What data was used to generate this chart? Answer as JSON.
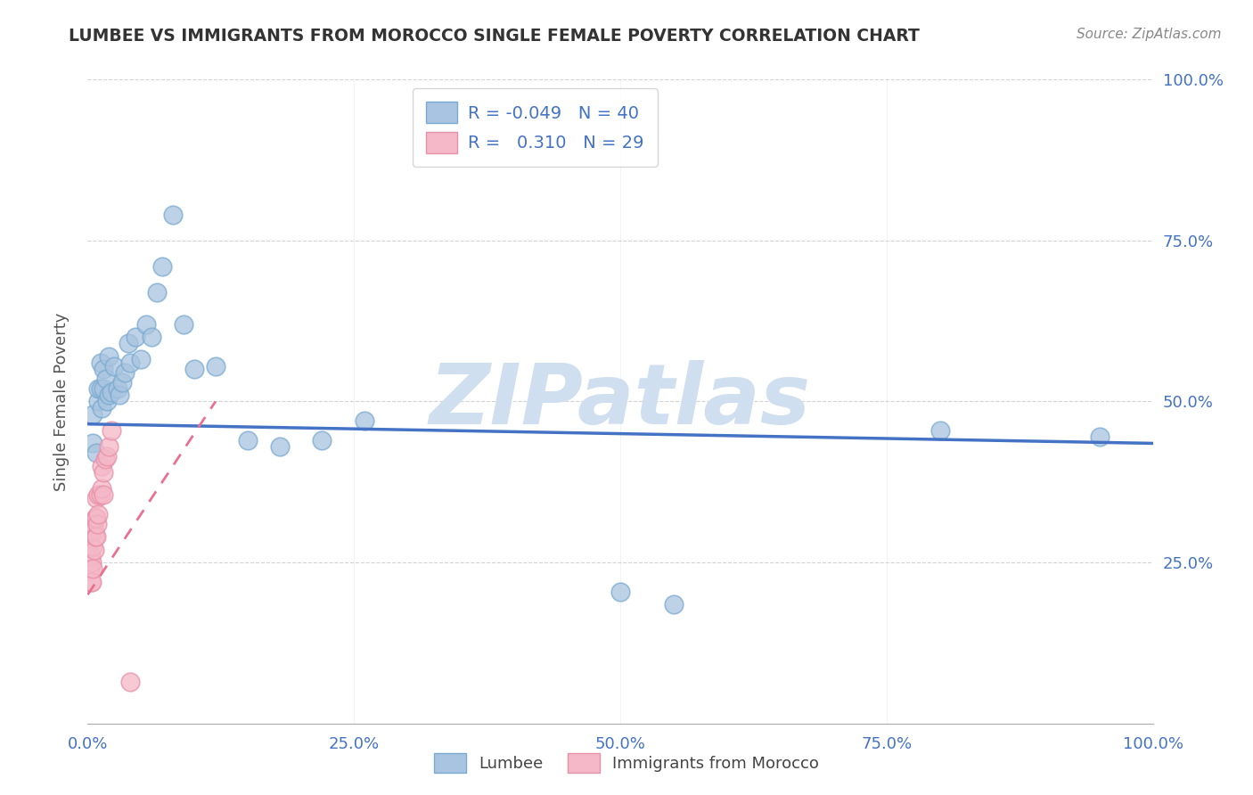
{
  "title": "LUMBEE VS IMMIGRANTS FROM MOROCCO SINGLE FEMALE POVERTY CORRELATION CHART",
  "source": "Source: ZipAtlas.com",
  "ylabel": "Single Female Poverty",
  "xlim": [
    0,
    1.0
  ],
  "ylim": [
    0,
    1.0
  ],
  "xtick_labels": [
    "0.0%",
    "",
    "",
    "",
    "25.0%",
    "",
    "",
    "",
    "50.0%",
    "",
    "",
    "",
    "75.0%",
    "",
    "",
    "",
    "100.0%"
  ],
  "xtick_vals": [
    0,
    0.25,
    0.5,
    0.75,
    1.0
  ],
  "ytick_labels_right": [
    "100.0%",
    "75.0%",
    "50.0%",
    "25.0%"
  ],
  "ytick_vals": [
    1.0,
    0.75,
    0.5,
    0.25
  ],
  "lumbee_R": "-0.049",
  "lumbee_N": "40",
  "morocco_R": "0.310",
  "morocco_N": "29",
  "lumbee_color": "#a8c4e0",
  "morocco_color": "#f4b8c8",
  "trendline_lumbee_color": "#4472c4",
  "trendline_morocco_color": "#e87090",
  "lumbee_dot_edge": "#7aaad0",
  "morocco_dot_edge": "#e890a8",
  "watermark_color": "#d0dff0",
  "lumbee_trend_x": [
    0.0,
    1.0
  ],
  "lumbee_trend_y": [
    0.465,
    0.435
  ],
  "morocco_trend_x": [
    0.0,
    0.12
  ],
  "morocco_trend_y": [
    0.2,
    0.5
  ],
  "lumbee_x": [
    0.005,
    0.005,
    0.008,
    0.01,
    0.01,
    0.012,
    0.012,
    0.013,
    0.015,
    0.015,
    0.017,
    0.018,
    0.02,
    0.02,
    0.022,
    0.025,
    0.028,
    0.03,
    0.032,
    0.035,
    0.038,
    0.04,
    0.045,
    0.05,
    0.055,
    0.06,
    0.065,
    0.07,
    0.08,
    0.09,
    0.1,
    0.12,
    0.15,
    0.18,
    0.22,
    0.26,
    0.5,
    0.55,
    0.8,
    0.95
  ],
  "lumbee_y": [
    0.435,
    0.48,
    0.42,
    0.5,
    0.52,
    0.52,
    0.56,
    0.49,
    0.52,
    0.55,
    0.535,
    0.5,
    0.51,
    0.57,
    0.515,
    0.555,
    0.52,
    0.51,
    0.53,
    0.545,
    0.59,
    0.56,
    0.6,
    0.565,
    0.62,
    0.6,
    0.67,
    0.71,
    0.79,
    0.62,
    0.55,
    0.555,
    0.44,
    0.43,
    0.44,
    0.47,
    0.205,
    0.185,
    0.455,
    0.445
  ],
  "morocco_x": [
    0.002,
    0.002,
    0.003,
    0.003,
    0.004,
    0.004,
    0.005,
    0.005,
    0.005,
    0.006,
    0.006,
    0.007,
    0.007,
    0.008,
    0.008,
    0.008,
    0.009,
    0.01,
    0.01,
    0.012,
    0.013,
    0.013,
    0.015,
    0.015,
    0.016,
    0.018,
    0.02,
    0.022,
    0.04
  ],
  "morocco_y": [
    0.24,
    0.28,
    0.22,
    0.26,
    0.22,
    0.25,
    0.24,
    0.275,
    0.3,
    0.27,
    0.3,
    0.29,
    0.32,
    0.29,
    0.32,
    0.35,
    0.31,
    0.325,
    0.355,
    0.355,
    0.365,
    0.4,
    0.355,
    0.39,
    0.41,
    0.415,
    0.43,
    0.455,
    0.065
  ]
}
